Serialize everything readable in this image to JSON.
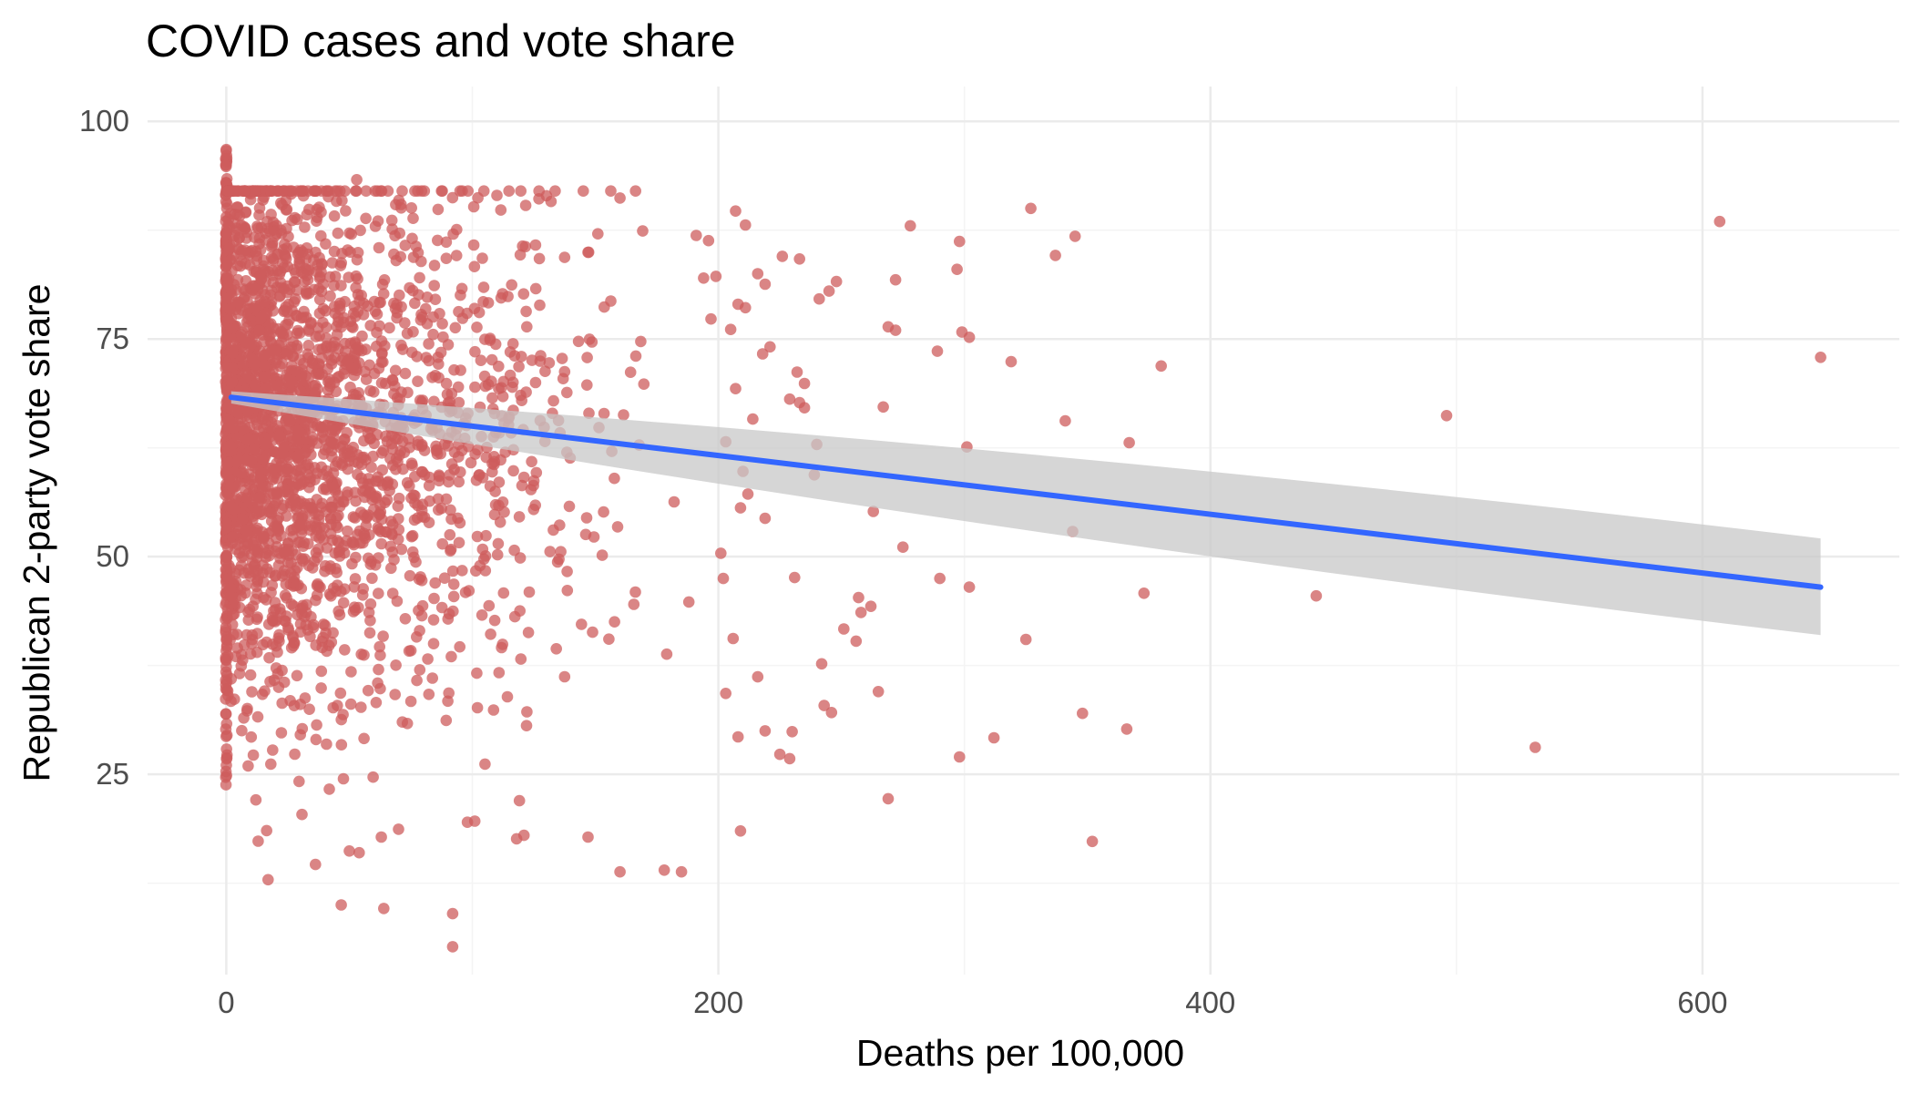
{
  "chart_data": {
    "type": "scatter",
    "title": "COVID cases and vote share",
    "xlabel": "Deaths per 100,000",
    "ylabel": "Republican 2-party vote share",
    "xlim": [
      -32,
      680
    ],
    "ylim": [
      2,
      104
    ],
    "x_ticks": [
      0,
      200,
      400,
      600
    ],
    "y_ticks": [
      25,
      50,
      75,
      100
    ],
    "x_tick_labels": [
      "0",
      "200",
      "400",
      "600"
    ],
    "y_tick_labels": [
      "25",
      "50",
      "75",
      "100"
    ],
    "grid": true,
    "legend": "none",
    "colors": {
      "points": "#cd5c5c",
      "trend": "#3366ff",
      "ribbon": "#c8c8c8",
      "grid_major": "#ebebeb",
      "grid_minor": "#f4f4f4"
    },
    "trend_line": {
      "x": [
        2,
        648
      ],
      "y": [
        68.3,
        46.5
      ],
      "ci_lower": [
        67.6,
        41.0
      ],
      "ci_upper": [
        69.0,
        52.1
      ]
    },
    "zero_cluster": {
      "x": 0,
      "y_min": 21,
      "y_max": 97,
      "count": 230
    },
    "dense_cloud": {
      "x_max": 200,
      "y_mean": 66,
      "y_sd": 15,
      "y_min": 10,
      "y_max": 92,
      "count": 2500
    },
    "points": [
      {
        "x": 607,
        "y": 88.5
      },
      {
        "x": 648,
        "y": 72.9
      },
      {
        "x": 496,
        "y": 66.2
      },
      {
        "x": 532,
        "y": 28.1
      },
      {
        "x": 443,
        "y": 45.5
      },
      {
        "x": 380,
        "y": 71.9
      },
      {
        "x": 367,
        "y": 63.1
      },
      {
        "x": 373,
        "y": 45.8
      },
      {
        "x": 366,
        "y": 30.2
      },
      {
        "x": 352,
        "y": 17.3
      },
      {
        "x": 348,
        "y": 32.0
      },
      {
        "x": 345,
        "y": 86.8
      },
      {
        "x": 337,
        "y": 84.6
      },
      {
        "x": 327,
        "y": 90.0
      },
      {
        "x": 341,
        "y": 65.6
      },
      {
        "x": 344,
        "y": 52.9
      },
      {
        "x": 319,
        "y": 72.4
      },
      {
        "x": 325,
        "y": 40.5
      },
      {
        "x": 312,
        "y": 29.2
      },
      {
        "x": 302,
        "y": 75.2
      },
      {
        "x": 299,
        "y": 75.8
      },
      {
        "x": 298,
        "y": 86.2
      },
      {
        "x": 297,
        "y": 83.0
      },
      {
        "x": 301,
        "y": 62.6
      },
      {
        "x": 302,
        "y": 46.5
      },
      {
        "x": 298,
        "y": 27.0
      },
      {
        "x": 289,
        "y": 73.6
      },
      {
        "x": 290,
        "y": 47.5
      },
      {
        "x": 278,
        "y": 88.0
      },
      {
        "x": 272,
        "y": 81.8
      },
      {
        "x": 272,
        "y": 76.0
      },
      {
        "x": 269,
        "y": 76.4
      },
      {
        "x": 267,
        "y": 67.2
      },
      {
        "x": 275,
        "y": 51.1
      },
      {
        "x": 263,
        "y": 55.2
      },
      {
        "x": 265,
        "y": 34.5
      },
      {
        "x": 269,
        "y": 22.2
      },
      {
        "x": 262,
        "y": 44.3
      },
      {
        "x": 258,
        "y": 43.6
      },
      {
        "x": 257,
        "y": 45.3
      },
      {
        "x": 251,
        "y": 41.7
      },
      {
        "x": 256,
        "y": 40.3
      },
      {
        "x": 248,
        "y": 81.6
      },
      {
        "x": 245,
        "y": 80.5
      },
      {
        "x": 241,
        "y": 79.6
      },
      {
        "x": 240,
        "y": 62.9
      },
      {
        "x": 239,
        "y": 59.4
      },
      {
        "x": 246,
        "y": 32.1
      },
      {
        "x": 243,
        "y": 32.9
      },
      {
        "x": 242,
        "y": 37.7
      },
      {
        "x": 233,
        "y": 84.2
      },
      {
        "x": 226,
        "y": 84.5
      },
      {
        "x": 232,
        "y": 71.2
      },
      {
        "x": 235,
        "y": 69.9
      },
      {
        "x": 233,
        "y": 67.7
      },
      {
        "x": 235,
        "y": 67.1
      },
      {
        "x": 229,
        "y": 68.1
      },
      {
        "x": 231,
        "y": 47.6
      },
      {
        "x": 229,
        "y": 26.8
      },
      {
        "x": 225,
        "y": 27.3
      },
      {
        "x": 230,
        "y": 29.9
      },
      {
        "x": 219,
        "y": 81.3
      },
      {
        "x": 216,
        "y": 82.5
      },
      {
        "x": 221,
        "y": 74.1
      },
      {
        "x": 218,
        "y": 73.3
      },
      {
        "x": 219,
        "y": 54.4
      },
      {
        "x": 214,
        "y": 65.8
      },
      {
        "x": 216,
        "y": 36.2
      },
      {
        "x": 219,
        "y": 30.0
      },
      {
        "x": 211,
        "y": 88.1
      },
      {
        "x": 207,
        "y": 89.7
      },
      {
        "x": 208,
        "y": 79.0
      },
      {
        "x": 211,
        "y": 78.6
      },
      {
        "x": 205,
        "y": 76.1
      },
      {
        "x": 207,
        "y": 69.3
      },
      {
        "x": 203,
        "y": 63.2
      },
      {
        "x": 210,
        "y": 59.8
      },
      {
        "x": 209,
        "y": 55.6
      },
      {
        "x": 212,
        "y": 57.2
      },
      {
        "x": 206,
        "y": 40.6
      },
      {
        "x": 203,
        "y": 34.3
      },
      {
        "x": 208,
        "y": 29.3
      },
      {
        "x": 209,
        "y": 18.5
      },
      {
        "x": 199,
        "y": 82.2
      },
      {
        "x": 196,
        "y": 86.3
      },
      {
        "x": 201,
        "y": 50.4
      },
      {
        "x": 202,
        "y": 47.5
      },
      {
        "x": 194,
        "y": 82.0
      },
      {
        "x": 197,
        "y": 77.3
      },
      {
        "x": 191,
        "y": 86.9
      },
      {
        "x": 188,
        "y": 44.8
      },
      {
        "x": 185,
        "y": 13.8
      },
      {
        "x": 178,
        "y": 14.0
      },
      {
        "x": 179,
        "y": 38.8
      },
      {
        "x": 182,
        "y": 56.3
      },
      {
        "x": 160,
        "y": 13.8
      },
      {
        "x": 147,
        "y": 17.8
      },
      {
        "x": 121,
        "y": 18.0
      },
      {
        "x": 118,
        "y": 17.6
      },
      {
        "x": 92,
        "y": 9.0
      },
      {
        "x": 92,
        "y": 5.2
      },
      {
        "x": 64,
        "y": 9.6
      },
      {
        "x": 63,
        "y": 17.8
      },
      {
        "x": 17,
        "y": 12.9
      },
      {
        "x": 98,
        "y": 19.5
      },
      {
        "x": 50,
        "y": 16.2
      },
      {
        "x": 54,
        "y": 16.0
      },
      {
        "x": 70,
        "y": 18.7
      },
      {
        "x": 53,
        "y": 93.3
      },
      {
        "x": 95,
        "y": 92.0
      },
      {
        "x": 110,
        "y": 91.5
      },
      {
        "x": 160,
        "y": 91.2
      },
      {
        "x": 132,
        "y": 90.8
      }
    ]
  }
}
